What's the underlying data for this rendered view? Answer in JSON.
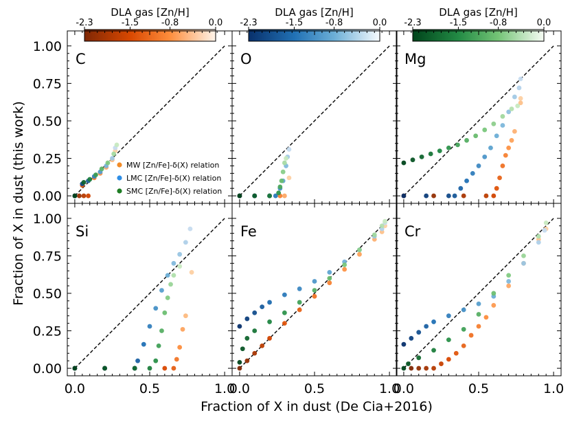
{
  "chart_data": {
    "type": "scatter",
    "xlabel": "Fraction of X in dust (De Cia+2016)",
    "ylabel": "Fraction of X in dust (this work)",
    "xlim": [
      -0.05,
      1.05
    ],
    "ylim": [
      -0.05,
      1.1
    ],
    "x_ticks": [
      0.0,
      0.5,
      1.0
    ],
    "x_tick_labels": [
      "0.0",
      "0.5",
      "1.0"
    ],
    "y_ticks": [
      0.0,
      0.25,
      0.5,
      0.75,
      1.0
    ],
    "y_tick_labels": [
      "0.00",
      "0.25",
      "0.50",
      "0.75",
      "1.00"
    ],
    "one_to_one_line": true,
    "colorbars": [
      {
        "label": "DLA gas [Zn/H]",
        "cmap": "orange",
        "ticks": [
          "-2.3",
          "-1.5",
          "-0.8",
          "0.0"
        ],
        "range": [
          -2.3,
          0.0
        ]
      },
      {
        "label": "DLA gas [Zn/H]",
        "cmap": "blue",
        "ticks": [
          "-2.3",
          "-1.5",
          "-0.8",
          "0.0"
        ],
        "range": [
          -2.3,
          0.0
        ]
      },
      {
        "label": "DLA gas [Zn/H]",
        "cmap": "green",
        "ticks": [
          "-2.3",
          "-1.5",
          "-0.8",
          "0.0"
        ],
        "range": [
          -2.3,
          0.0
        ]
      }
    ],
    "legend": {
      "position": "inside panel C, lower-right",
      "entries": [
        {
          "label": "MW [Zn/Fe]-δ(X) relation",
          "color": "#f28c28"
        },
        {
          "label": "LMC [Zn/Fe]-δ(X) relation",
          "color": "#2e8ee6"
        },
        {
          "label": "SMC [Zn/Fe]-δ(X) relation",
          "color": "#1e7d24"
        }
      ]
    },
    "panels": [
      {
        "element": "C",
        "series": [
          {
            "name": "MW",
            "points": [
              [
                0.0,
                0.0
              ],
              [
                0.03,
                0.0
              ],
              [
                0.06,
                0.0
              ],
              [
                0.09,
                0.0
              ],
              [
                0.05,
                0.07
              ],
              [
                0.09,
                0.1
              ],
              [
                0.13,
                0.12
              ],
              [
                0.17,
                0.15
              ],
              [
                0.21,
                0.19
              ],
              [
                0.25,
                0.24
              ],
              [
                0.27,
                0.3
              ]
            ]
          },
          {
            "name": "LMC",
            "points": [
              [
                0.0,
                0.0
              ],
              [
                0.05,
                0.08
              ],
              [
                0.09,
                0.1
              ],
              [
                0.13,
                0.13
              ],
              [
                0.17,
                0.16
              ],
              [
                0.21,
                0.2
              ],
              [
                0.25,
                0.25
              ],
              [
                0.27,
                0.32
              ]
            ]
          },
          {
            "name": "SMC",
            "points": [
              [
                0.0,
                0.0
              ],
              [
                0.06,
                0.09
              ],
              [
                0.1,
                0.11
              ],
              [
                0.14,
                0.14
              ],
              [
                0.18,
                0.18
              ],
              [
                0.22,
                0.22
              ],
              [
                0.26,
                0.28
              ],
              [
                0.28,
                0.34
              ]
            ]
          }
        ]
      },
      {
        "element": "O",
        "series": [
          {
            "name": "MW",
            "points": [
              [
                0.0,
                0.0
              ],
              [
                0.1,
                0.0
              ],
              [
                0.2,
                0.0
              ],
              [
                0.27,
                0.0
              ],
              [
                0.3,
                0.0
              ],
              [
                0.33,
                0.12
              ]
            ]
          },
          {
            "name": "LMC",
            "points": [
              [
                0.0,
                0.0
              ],
              [
                0.1,
                0.0
              ],
              [
                0.2,
                0.0
              ],
              [
                0.24,
                0.0
              ],
              [
                0.27,
                0.05
              ],
              [
                0.29,
                0.1
              ],
              [
                0.31,
                0.2
              ],
              [
                0.32,
                0.26
              ],
              [
                0.33,
                0.31
              ]
            ]
          },
          {
            "name": "SMC",
            "points": [
              [
                0.0,
                0.0
              ],
              [
                0.1,
                0.0
              ],
              [
                0.2,
                0.0
              ],
              [
                0.26,
                0.02
              ],
              [
                0.27,
                0.06
              ],
              [
                0.28,
                0.1
              ],
              [
                0.29,
                0.16
              ],
              [
                0.3,
                0.22
              ],
              [
                0.31,
                0.25
              ]
            ]
          }
        ]
      },
      {
        "element": "Mg",
        "series": [
          {
            "name": "MW",
            "points": [
              [
                0.0,
                0.0
              ],
              [
                0.2,
                0.0
              ],
              [
                0.4,
                0.0
              ],
              [
                0.55,
                0.0
              ],
              [
                0.6,
                0.0
              ],
              [
                0.62,
                0.05
              ],
              [
                0.64,
                0.12
              ],
              [
                0.66,
                0.2
              ],
              [
                0.68,
                0.27
              ],
              [
                0.7,
                0.32
              ],
              [
                0.72,
                0.37
              ],
              [
                0.74,
                0.43
              ],
              [
                0.78,
                0.62
              ],
              [
                0.78,
                0.65
              ]
            ]
          },
          {
            "name": "LMC",
            "points": [
              [
                0.0,
                0.0
              ],
              [
                0.15,
                0.0
              ],
              [
                0.3,
                0.0
              ],
              [
                0.34,
                0.0
              ],
              [
                0.38,
                0.05
              ],
              [
                0.42,
                0.1
              ],
              [
                0.46,
                0.15
              ],
              [
                0.5,
                0.2
              ],
              [
                0.54,
                0.26
              ],
              [
                0.58,
                0.32
              ],
              [
                0.62,
                0.4
              ],
              [
                0.66,
                0.47
              ],
              [
                0.7,
                0.56
              ],
              [
                0.74,
                0.66
              ],
              [
                0.77,
                0.72
              ],
              [
                0.78,
                0.78
              ]
            ]
          },
          {
            "name": "SMC",
            "points": [
              [
                0.0,
                0.22
              ],
              [
                0.06,
                0.24
              ],
              [
                0.12,
                0.26
              ],
              [
                0.18,
                0.28
              ],
              [
                0.24,
                0.3
              ],
              [
                0.3,
                0.32
              ],
              [
                0.36,
                0.34
              ],
              [
                0.42,
                0.37
              ],
              [
                0.48,
                0.4
              ],
              [
                0.54,
                0.44
              ],
              [
                0.6,
                0.48
              ],
              [
                0.66,
                0.53
              ],
              [
                0.72,
                0.58
              ],
              [
                0.76,
                0.6
              ]
            ]
          }
        ]
      },
      {
        "element": "Si",
        "series": [
          {
            "name": "MW",
            "points": [
              [
                0.0,
                0.0
              ],
              [
                0.2,
                0.0
              ],
              [
                0.4,
                0.0
              ],
              [
                0.6,
                0.0
              ],
              [
                0.66,
                0.0
              ],
              [
                0.68,
                0.06
              ],
              [
                0.7,
                0.14
              ],
              [
                0.72,
                0.26
              ],
              [
                0.74,
                0.35
              ],
              [
                0.78,
                0.64
              ]
            ]
          },
          {
            "name": "LMC",
            "points": [
              [
                0.0,
                0.0
              ],
              [
                0.2,
                0.0
              ],
              [
                0.4,
                0.0
              ],
              [
                0.42,
                0.05
              ],
              [
                0.46,
                0.16
              ],
              [
                0.5,
                0.28
              ],
              [
                0.54,
                0.4
              ],
              [
                0.58,
                0.52
              ],
              [
                0.62,
                0.62
              ],
              [
                0.66,
                0.7
              ],
              [
                0.7,
                0.76
              ],
              [
                0.74,
                0.84
              ],
              [
                0.77,
                0.93
              ]
            ]
          },
          {
            "name": "SMC",
            "points": [
              [
                0.0,
                0.0
              ],
              [
                0.2,
                0.0
              ],
              [
                0.4,
                0.0
              ],
              [
                0.5,
                0.0
              ],
              [
                0.54,
                0.05
              ],
              [
                0.56,
                0.15
              ],
              [
                0.58,
                0.25
              ],
              [
                0.6,
                0.37
              ],
              [
                0.62,
                0.47
              ],
              [
                0.64,
                0.56
              ],
              [
                0.66,
                0.62
              ],
              [
                0.7,
                0.68
              ]
            ]
          }
        ]
      },
      {
        "element": "Fe",
        "series": [
          {
            "name": "MW",
            "points": [
              [
                0.0,
                0.0
              ],
              [
                0.05,
                0.05
              ],
              [
                0.1,
                0.1
              ],
              [
                0.15,
                0.15
              ],
              [
                0.2,
                0.2
              ],
              [
                0.3,
                0.3
              ],
              [
                0.4,
                0.39
              ],
              [
                0.5,
                0.48
              ],
              [
                0.6,
                0.57
              ],
              [
                0.7,
                0.66
              ],
              [
                0.8,
                0.76
              ],
              [
                0.9,
                0.86
              ],
              [
                0.95,
                0.91
              ],
              [
                0.97,
                0.95
              ]
            ]
          },
          {
            "name": "LMC",
            "points": [
              [
                0.0,
                0.28
              ],
              [
                0.05,
                0.33
              ],
              [
                0.1,
                0.37
              ],
              [
                0.15,
                0.41
              ],
              [
                0.2,
                0.44
              ],
              [
                0.3,
                0.49
              ],
              [
                0.4,
                0.53
              ],
              [
                0.5,
                0.58
              ],
              [
                0.6,
                0.64
              ],
              [
                0.7,
                0.71
              ],
              [
                0.8,
                0.79
              ],
              [
                0.9,
                0.88
              ],
              [
                0.95,
                0.93
              ],
              [
                0.97,
                0.97
              ]
            ]
          },
          {
            "name": "SMC",
            "points": [
              [
                0.0,
                0.04
              ],
              [
                0.02,
                0.13
              ],
              [
                0.05,
                0.2
              ],
              [
                0.1,
                0.25
              ],
              [
                0.2,
                0.31
              ],
              [
                0.3,
                0.37
              ],
              [
                0.4,
                0.44
              ],
              [
                0.5,
                0.52
              ],
              [
                0.6,
                0.6
              ],
              [
                0.7,
                0.69
              ],
              [
                0.8,
                0.79
              ],
              [
                0.9,
                0.89
              ],
              [
                0.95,
                0.95
              ],
              [
                0.97,
                0.98
              ]
            ]
          }
        ]
      },
      {
        "element": "Cr",
        "series": [
          {
            "name": "MW",
            "points": [
              [
                0.05,
                0.0
              ],
              [
                0.1,
                0.0
              ],
              [
                0.15,
                0.0
              ],
              [
                0.2,
                0.0
              ],
              [
                0.25,
                0.03
              ],
              [
                0.3,
                0.06
              ],
              [
                0.35,
                0.1
              ],
              [
                0.4,
                0.15
              ],
              [
                0.45,
                0.22
              ],
              [
                0.5,
                0.28
              ],
              [
                0.55,
                0.34
              ],
              [
                0.6,
                0.42
              ],
              [
                0.7,
                0.55
              ],
              [
                0.8,
                0.7
              ],
              [
                0.9,
                0.86
              ],
              [
                0.95,
                0.93
              ]
            ]
          },
          {
            "name": "LMC",
            "points": [
              [
                0.0,
                0.16
              ],
              [
                0.05,
                0.2
              ],
              [
                0.1,
                0.24
              ],
              [
                0.15,
                0.28
              ],
              [
                0.2,
                0.31
              ],
              [
                0.3,
                0.35
              ],
              [
                0.4,
                0.39
              ],
              [
                0.5,
                0.43
              ],
              [
                0.6,
                0.48
              ],
              [
                0.7,
                0.58
              ],
              [
                0.8,
                0.7
              ],
              [
                0.9,
                0.84
              ],
              [
                0.94,
                0.92
              ]
            ]
          },
          {
            "name": "SMC",
            "points": [
              [
                0.0,
                0.0
              ],
              [
                0.03,
                0.03
              ],
              [
                0.1,
                0.07
              ],
              [
                0.2,
                0.12
              ],
              [
                0.3,
                0.19
              ],
              [
                0.4,
                0.26
              ],
              [
                0.5,
                0.36
              ],
              [
                0.6,
                0.5
              ],
              [
                0.7,
                0.62
              ],
              [
                0.8,
                0.75
              ],
              [
                0.9,
                0.88
              ],
              [
                0.95,
                0.97
              ]
            ]
          }
        ]
      }
    ]
  }
}
